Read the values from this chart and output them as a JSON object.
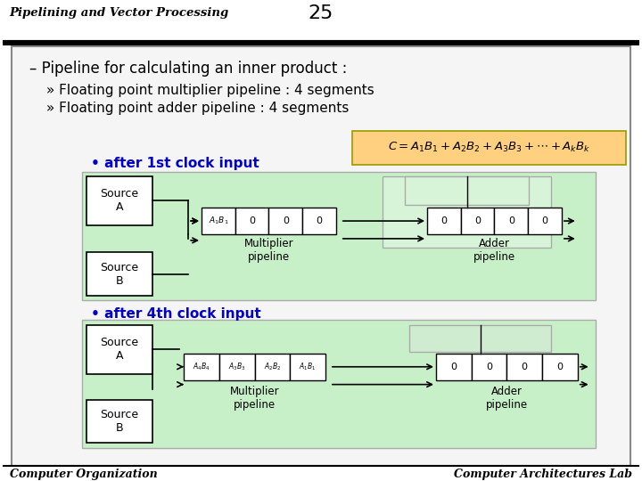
{
  "title_left": "Pipelining and Vector Processing",
  "title_number": "25",
  "footer_left": "Computer Organization",
  "footer_right": "Computer Architectures Lab",
  "bg_color": "#ffffff",
  "header_bg": "#ffffff",
  "slide_bg": "#ffffff",
  "green_bg": "#ccffcc",
  "green_bg2": "#d0f0d0",
  "bullet1": "– Pipeline for calculating an inner product :",
  "bullet2": "» Floating point multiplier pipeline : 4 segments",
  "bullet3": "» Floating point adder pipeline : 4 segments",
  "label_after1st": "after 1st clock input",
  "label_after4th": "after 4th clock input",
  "formula_bg": "#ffd080",
  "formula_text": "C = A₁B₁ + A₂B₂ + A₃B₃ + … + AₖBₖ",
  "source_a": "Source\nA",
  "source_b": "Source\nB",
  "mult_label": "Multiplier\npipeline",
  "adder_label": "Adder\npipeline",
  "cell1_label1": "A₁B₁",
  "cells_zero": "0",
  "cell4_labels": "A₄B₄  A₃B₃  A₂B₂  A₁B₁"
}
